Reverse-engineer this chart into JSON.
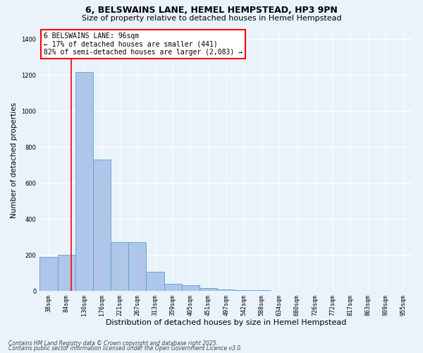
{
  "title1": "6, BELSWAINS LANE, HEMEL HEMPSTEAD, HP3 9PN",
  "title2": "Size of property relative to detached houses in Hemel Hempstead",
  "xlabel": "Distribution of detached houses by size in Hemel Hempstead",
  "ylabel": "Number of detached properties",
  "footer1": "Contains HM Land Registry data © Crown copyright and database right 2025.",
  "footer2": "Contains public sector information licensed under the Open Government Licence v3.0.",
  "annotation_line1": "6 BELSWAINS LANE: 96sqm",
  "annotation_line2": "← 17% of detached houses are smaller (441)",
  "annotation_line3": "82% of semi-detached houses are larger (2,083) →",
  "categories": [
    "38sqm",
    "84sqm",
    "130sqm",
    "176sqm",
    "221sqm",
    "267sqm",
    "313sqm",
    "359sqm",
    "405sqm",
    "451sqm",
    "497sqm",
    "542sqm",
    "588sqm",
    "634sqm",
    "680sqm",
    "726sqm",
    "772sqm",
    "817sqm",
    "863sqm",
    "909sqm",
    "955sqm"
  ],
  "values": [
    190,
    200,
    1215,
    730,
    270,
    270,
    105,
    40,
    33,
    15,
    10,
    5,
    5,
    0,
    0,
    0,
    0,
    0,
    0,
    0,
    0
  ],
  "bar_color": "#aec6e8",
  "bar_edge_color": "#5a9fd4",
  "ylim": [
    0,
    1450
  ],
  "background_color": "#eaf3fb",
  "annotation_box_color": "white",
  "annotation_box_edge": "red",
  "title1_fontsize": 9,
  "title2_fontsize": 8,
  "xlabel_fontsize": 8,
  "ylabel_fontsize": 7.5,
  "tick_fontsize": 6,
  "footer_fontsize": 5.5,
  "annotation_fontsize": 7,
  "red_line_sqm": 96
}
